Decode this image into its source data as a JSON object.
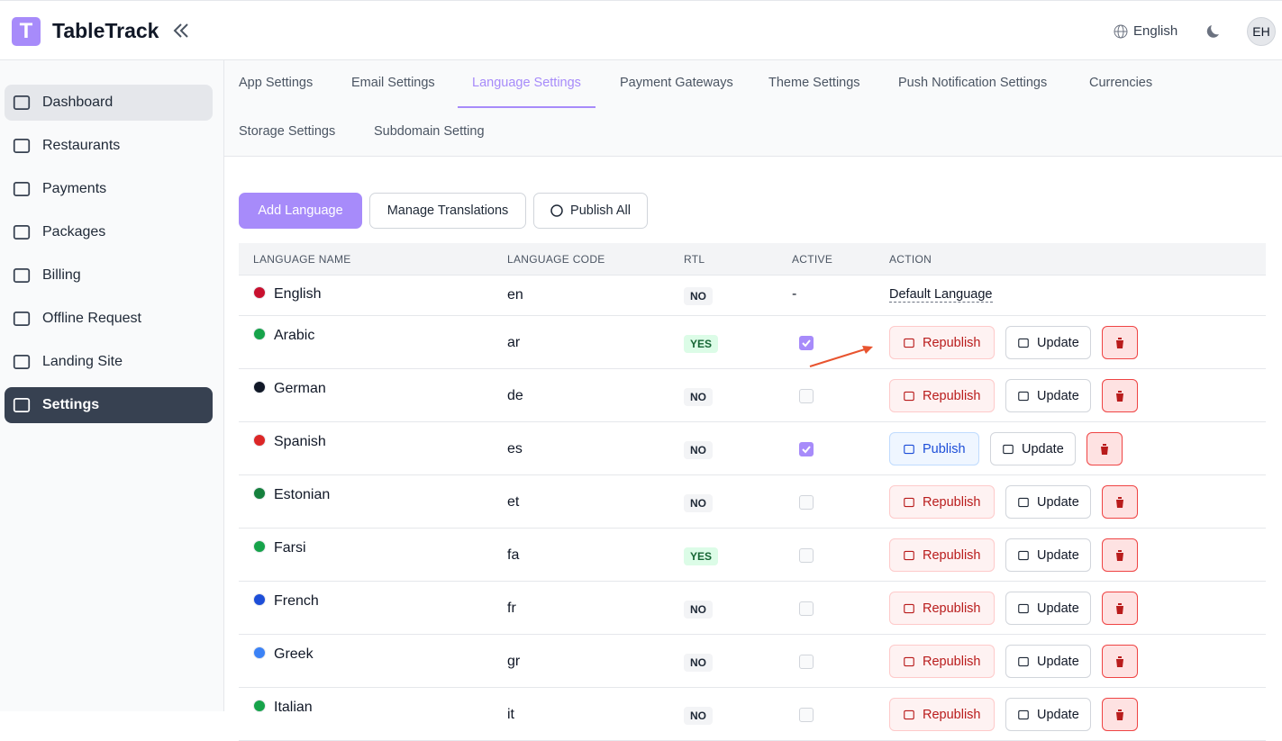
{
  "header": {
    "logo_letter": "T",
    "brand": "TableTrack",
    "language": "English",
    "avatar": "EH"
  },
  "sidebar": {
    "items": [
      {
        "label": "Dashboard",
        "state": "hover"
      },
      {
        "label": "Restaurants",
        "state": "normal"
      },
      {
        "label": "Payments",
        "state": "normal"
      },
      {
        "label": "Packages",
        "state": "normal"
      },
      {
        "label": "Billing",
        "state": "normal"
      },
      {
        "label": "Offline Request",
        "state": "normal"
      },
      {
        "label": "Landing Site",
        "state": "normal"
      },
      {
        "label": "Settings",
        "state": "active"
      }
    ]
  },
  "tabs": {
    "rows": [
      [
        {
          "label": "App Settings",
          "active": false
        },
        {
          "label": "Email Settings",
          "active": false
        },
        {
          "label": "Language Settings",
          "active": true
        },
        {
          "label": "Payment Gateways",
          "active": false
        },
        {
          "label": "Theme Settings",
          "active": false
        },
        {
          "label": "Push Notification Settings",
          "active": false
        },
        {
          "label": "Currencies",
          "active": false
        }
      ],
      [
        {
          "label": "Storage Settings",
          "active": false
        },
        {
          "label": "Subdomain Setting",
          "active": false
        }
      ]
    ]
  },
  "toolbar": {
    "add": "Add Language",
    "manage": "Manage Translations",
    "publish_all": "Publish All"
  },
  "table": {
    "columns": [
      "LANGUAGE NAME",
      "LANGUAGE CODE",
      "RTL",
      "ACTIVE",
      "ACTION"
    ],
    "rows": [
      {
        "name": "English",
        "flag_color": "#c8102e",
        "code": "en",
        "rtl": "NO",
        "active": "-",
        "default": "Default Language"
      },
      {
        "name": "Arabic",
        "flag_color": "#16a34a",
        "code": "ar",
        "rtl": "YES",
        "active": true,
        "primary": "Republish",
        "published": true,
        "update": "Update"
      },
      {
        "name": "German",
        "flag_color": "#111827",
        "code": "de",
        "rtl": "NO",
        "active": false,
        "primary": "Republish",
        "published": true,
        "update": "Update"
      },
      {
        "name": "Spanish",
        "flag_color": "#dc2626",
        "code": "es",
        "rtl": "NO",
        "active": true,
        "primary": "Publish",
        "published": false,
        "update": "Update"
      },
      {
        "name": "Estonian",
        "flag_color": "#15803d",
        "code": "et",
        "rtl": "NO",
        "active": false,
        "primary": "Republish",
        "published": true,
        "update": "Update"
      },
      {
        "name": "Farsi",
        "flag_color": "#16a34a",
        "code": "fa",
        "rtl": "YES",
        "active": false,
        "primary": "Republish",
        "published": true,
        "update": "Update"
      },
      {
        "name": "French",
        "flag_color": "#1d4ed8",
        "code": "fr",
        "rtl": "NO",
        "active": false,
        "primary": "Republish",
        "published": true,
        "update": "Update"
      },
      {
        "name": "Greek",
        "flag_color": "#3b82f6",
        "code": "gr",
        "rtl": "NO",
        "active": false,
        "primary": "Republish",
        "published": true,
        "update": "Update"
      },
      {
        "name": "Italian",
        "flag_color": "#16a34a",
        "code": "it",
        "rtl": "NO",
        "active": false,
        "primary": "Republish",
        "published": true,
        "update": "Update"
      }
    ]
  }
}
